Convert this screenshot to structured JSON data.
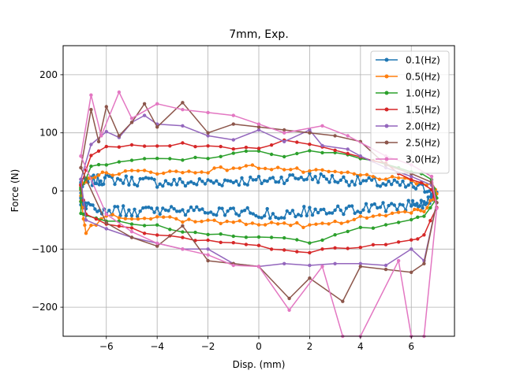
{
  "chart_data": {
    "type": "line",
    "title": "7mm, Exp.",
    "xlabel": "Disp. (mm)",
    "ylabel": "Force (N)",
    "xlim": [
      -7.7,
      7.7
    ],
    "ylim": [
      -250,
      250
    ],
    "xticks": [
      -6,
      -4,
      -2,
      0,
      2,
      4,
      6
    ],
    "yticks": [
      -200,
      -100,
      0,
      100,
      200
    ],
    "xtick_labels": [
      "−6",
      "−4",
      "−2",
      "0",
      "2",
      "4",
      "6"
    ],
    "ytick_labels": [
      "−200",
      "−100",
      "0",
      "100",
      "200"
    ],
    "grid": true,
    "legend_position": "top-right",
    "series": [
      {
        "name": "0.1(Hz)",
        "color": "#1f77b4",
        "upper": [
          [
            -7.0,
            10
          ],
          [
            -6.5,
            18
          ],
          [
            -6,
            20
          ],
          [
            -5,
            18
          ],
          [
            -4,
            15
          ],
          [
            -3,
            14
          ],
          [
            -2,
            15
          ],
          [
            -1,
            18
          ],
          [
            0,
            17
          ],
          [
            1,
            22
          ],
          [
            2,
            24
          ],
          [
            3,
            20
          ],
          [
            4,
            17
          ],
          [
            5,
            12
          ],
          [
            6,
            8
          ],
          [
            6.8,
            2
          ]
        ],
        "lower": [
          [
            7.0,
            -5
          ],
          [
            6.5,
            -22
          ],
          [
            6,
            -25
          ],
          [
            5,
            -27
          ],
          [
            4,
            -30
          ],
          [
            3,
            -32
          ],
          [
            2,
            -35
          ],
          [
            1,
            -38
          ],
          [
            0,
            -40
          ],
          [
            -1,
            -35
          ],
          [
            -2,
            -33
          ],
          [
            -3,
            -35
          ],
          [
            -4,
            -37
          ],
          [
            -5,
            -35
          ],
          [
            -6,
            -32
          ],
          [
            -6.8,
            -28
          ],
          [
            -7.0,
            -15
          ]
        ]
      },
      {
        "name": "0.5(Hz)",
        "color": "#ff7f0e",
        "upper": [
          [
            -7.0,
            5
          ],
          [
            -6.6,
            25
          ],
          [
            -6,
            30
          ],
          [
            -5,
            33
          ],
          [
            -4,
            33
          ],
          [
            -3,
            32
          ],
          [
            -2,
            35
          ],
          [
            -1,
            40
          ],
          [
            0,
            42
          ],
          [
            1,
            38
          ],
          [
            2,
            33
          ],
          [
            3,
            32
          ],
          [
            4,
            27
          ],
          [
            5,
            22
          ],
          [
            6,
            17
          ],
          [
            6.8,
            10
          ]
        ],
        "lower": [
          [
            7.0,
            -5
          ],
          [
            6.5,
            -32
          ],
          [
            6,
            -35
          ],
          [
            5,
            -40
          ],
          [
            4,
            -45
          ],
          [
            3,
            -55
          ],
          [
            2,
            -62
          ],
          [
            1,
            -55
          ],
          [
            0,
            -55
          ],
          [
            -1,
            -55
          ],
          [
            -2,
            -50
          ],
          [
            -3,
            -50
          ],
          [
            -4,
            -45
          ],
          [
            -5,
            -45
          ],
          [
            -6,
            -40
          ],
          [
            -6.8,
            -70
          ],
          [
            -7.0,
            -20
          ]
        ]
      },
      {
        "name": "1.0(Hz)",
        "color": "#2ca02c",
        "upper": [
          [
            -7.0,
            5
          ],
          [
            -6.6,
            40
          ],
          [
            -6,
            45
          ],
          [
            -5,
            52
          ],
          [
            -4,
            55
          ],
          [
            -3,
            54
          ],
          [
            -2,
            58
          ],
          [
            -1,
            62
          ],
          [
            0,
            70
          ],
          [
            1,
            60
          ],
          [
            2,
            68
          ],
          [
            3,
            65
          ],
          [
            4,
            55
          ],
          [
            5,
            45
          ],
          [
            6,
            35
          ],
          [
            6.8,
            20
          ]
        ],
        "lower": [
          [
            7.0,
            -10
          ],
          [
            6.5,
            -45
          ],
          [
            6,
            -50
          ],
          [
            5,
            -60
          ],
          [
            4,
            -65
          ],
          [
            3,
            -75
          ],
          [
            2,
            -88
          ],
          [
            1,
            -80
          ],
          [
            0,
            -82
          ],
          [
            -1,
            -75
          ],
          [
            -2,
            -72
          ],
          [
            -3,
            -68
          ],
          [
            -4,
            -60
          ],
          [
            -5,
            -55
          ],
          [
            -6,
            -50
          ],
          [
            -6.8,
            -45
          ],
          [
            -7.0,
            -40
          ]
        ]
      },
      {
        "name": "1.5(Hz)",
        "color": "#d62728",
        "upper": [
          [
            -7.0,
            10
          ],
          [
            -6.6,
            60
          ],
          [
            -6,
            75
          ],
          [
            -5,
            82
          ],
          [
            -4,
            78
          ],
          [
            -3,
            80
          ],
          [
            -2,
            75
          ],
          [
            -1,
            73
          ],
          [
            0,
            75
          ],
          [
            1,
            85
          ],
          [
            2,
            80
          ],
          [
            3,
            70
          ],
          [
            4,
            60
          ],
          [
            5,
            45
          ],
          [
            6,
            20
          ],
          [
            6.8,
            5
          ]
        ],
        "lower": [
          [
            7.0,
            -30
          ],
          [
            6.5,
            -75
          ],
          [
            6,
            -85
          ],
          [
            5,
            -90
          ],
          [
            4,
            -95
          ],
          [
            3,
            -100
          ],
          [
            2,
            -105
          ],
          [
            1,
            -100
          ],
          [
            0,
            -95
          ],
          [
            -1,
            -90
          ],
          [
            -2,
            -85
          ],
          [
            -3,
            -80
          ],
          [
            -4,
            -75
          ],
          [
            -5,
            -65
          ],
          [
            -6,
            -55
          ],
          [
            -6.8,
            -40
          ]
        ]
      },
      {
        "name": "2.0(Hz)",
        "color": "#9467bd",
        "upper": [
          [
            -7.0,
            20
          ],
          [
            -6.6,
            80
          ],
          [
            -6,
            102
          ],
          [
            -5.5,
            92
          ],
          [
            -5,
            118
          ],
          [
            -4.5,
            130
          ],
          [
            -4,
            115
          ],
          [
            -3,
            112
          ],
          [
            -2,
            95
          ],
          [
            -1,
            88
          ],
          [
            0,
            105
          ],
          [
            1,
            85
          ],
          [
            2,
            105
          ],
          [
            2.5,
            78
          ],
          [
            3.5,
            72
          ],
          [
            4,
            60
          ],
          [
            5,
            40
          ],
          [
            6,
            25
          ],
          [
            6.8,
            10
          ]
        ],
        "lower": [
          [
            7.0,
            -20
          ],
          [
            6.5,
            -120
          ],
          [
            6,
            -100
          ],
          [
            5,
            -128
          ],
          [
            4,
            -125
          ],
          [
            3,
            -125
          ],
          [
            2,
            -128
          ],
          [
            1,
            -125
          ],
          [
            0,
            -130
          ],
          [
            -1,
            -125
          ],
          [
            -2,
            -100
          ],
          [
            -3,
            -100
          ],
          [
            -4,
            -90
          ],
          [
            -5,
            -80
          ],
          [
            -6,
            -65
          ],
          [
            -6.8,
            -50
          ]
        ]
      },
      {
        "name": "2.5(Hz)",
        "color": "#8c564b",
        "upper": [
          [
            -7.0,
            40
          ],
          [
            -6.6,
            140
          ],
          [
            -6.3,
            85
          ],
          [
            -6,
            145
          ],
          [
            -5.5,
            95
          ],
          [
            -5,
            118
          ],
          [
            -4.5,
            150
          ],
          [
            -4,
            110
          ],
          [
            -3,
            152
          ],
          [
            -2,
            100
          ],
          [
            -1,
            115
          ],
          [
            0,
            110
          ],
          [
            1,
            105
          ],
          [
            2,
            100
          ],
          [
            3,
            95
          ],
          [
            4,
            85
          ],
          [
            5,
            45
          ],
          [
            6,
            30
          ],
          [
            6.8,
            15
          ]
        ],
        "lower": [
          [
            7.0,
            -20
          ],
          [
            6.5,
            -125
          ],
          [
            6,
            -140
          ],
          [
            5,
            -135
          ],
          [
            4,
            -130
          ],
          [
            3.3,
            -190
          ],
          [
            2,
            -150
          ],
          [
            1.2,
            -185
          ],
          [
            0,
            -130
          ],
          [
            -1,
            -125
          ],
          [
            -2,
            -120
          ],
          [
            -3,
            -60
          ],
          [
            -4,
            -95
          ],
          [
            -5,
            -80
          ],
          [
            -6,
            -55
          ]
        ]
      },
      {
        "name": "3.0(Hz)",
        "color": "#e377c2",
        "upper": [
          [
            -7.0,
            60
          ],
          [
            -6.6,
            165
          ],
          [
            -6.2,
            95
          ],
          [
            -5.5,
            170
          ],
          [
            -5,
            125
          ],
          [
            -4,
            150
          ],
          [
            -3,
            140
          ],
          [
            -2,
            135
          ],
          [
            -1,
            130
          ],
          [
            0,
            115
          ],
          [
            1,
            100
          ],
          [
            2.5,
            112
          ],
          [
            3.5,
            95
          ],
          [
            5,
            60
          ],
          [
            6,
            45
          ],
          [
            6.8,
            25
          ]
        ],
        "lower": [
          [
            7.0,
            -30
          ],
          [
            6.5,
            -250
          ],
          [
            6,
            -250
          ],
          [
            5.5,
            -120
          ],
          [
            4,
            -250
          ],
          [
            3.3,
            -250
          ],
          [
            2.5,
            -130
          ],
          [
            1.2,
            -205
          ],
          [
            0,
            -130
          ],
          [
            -1,
            -128
          ],
          [
            -2,
            -110
          ],
          [
            -3,
            -100
          ],
          [
            -4,
            -90
          ],
          [
            -5,
            -70
          ],
          [
            -6,
            -40
          ]
        ]
      }
    ]
  }
}
